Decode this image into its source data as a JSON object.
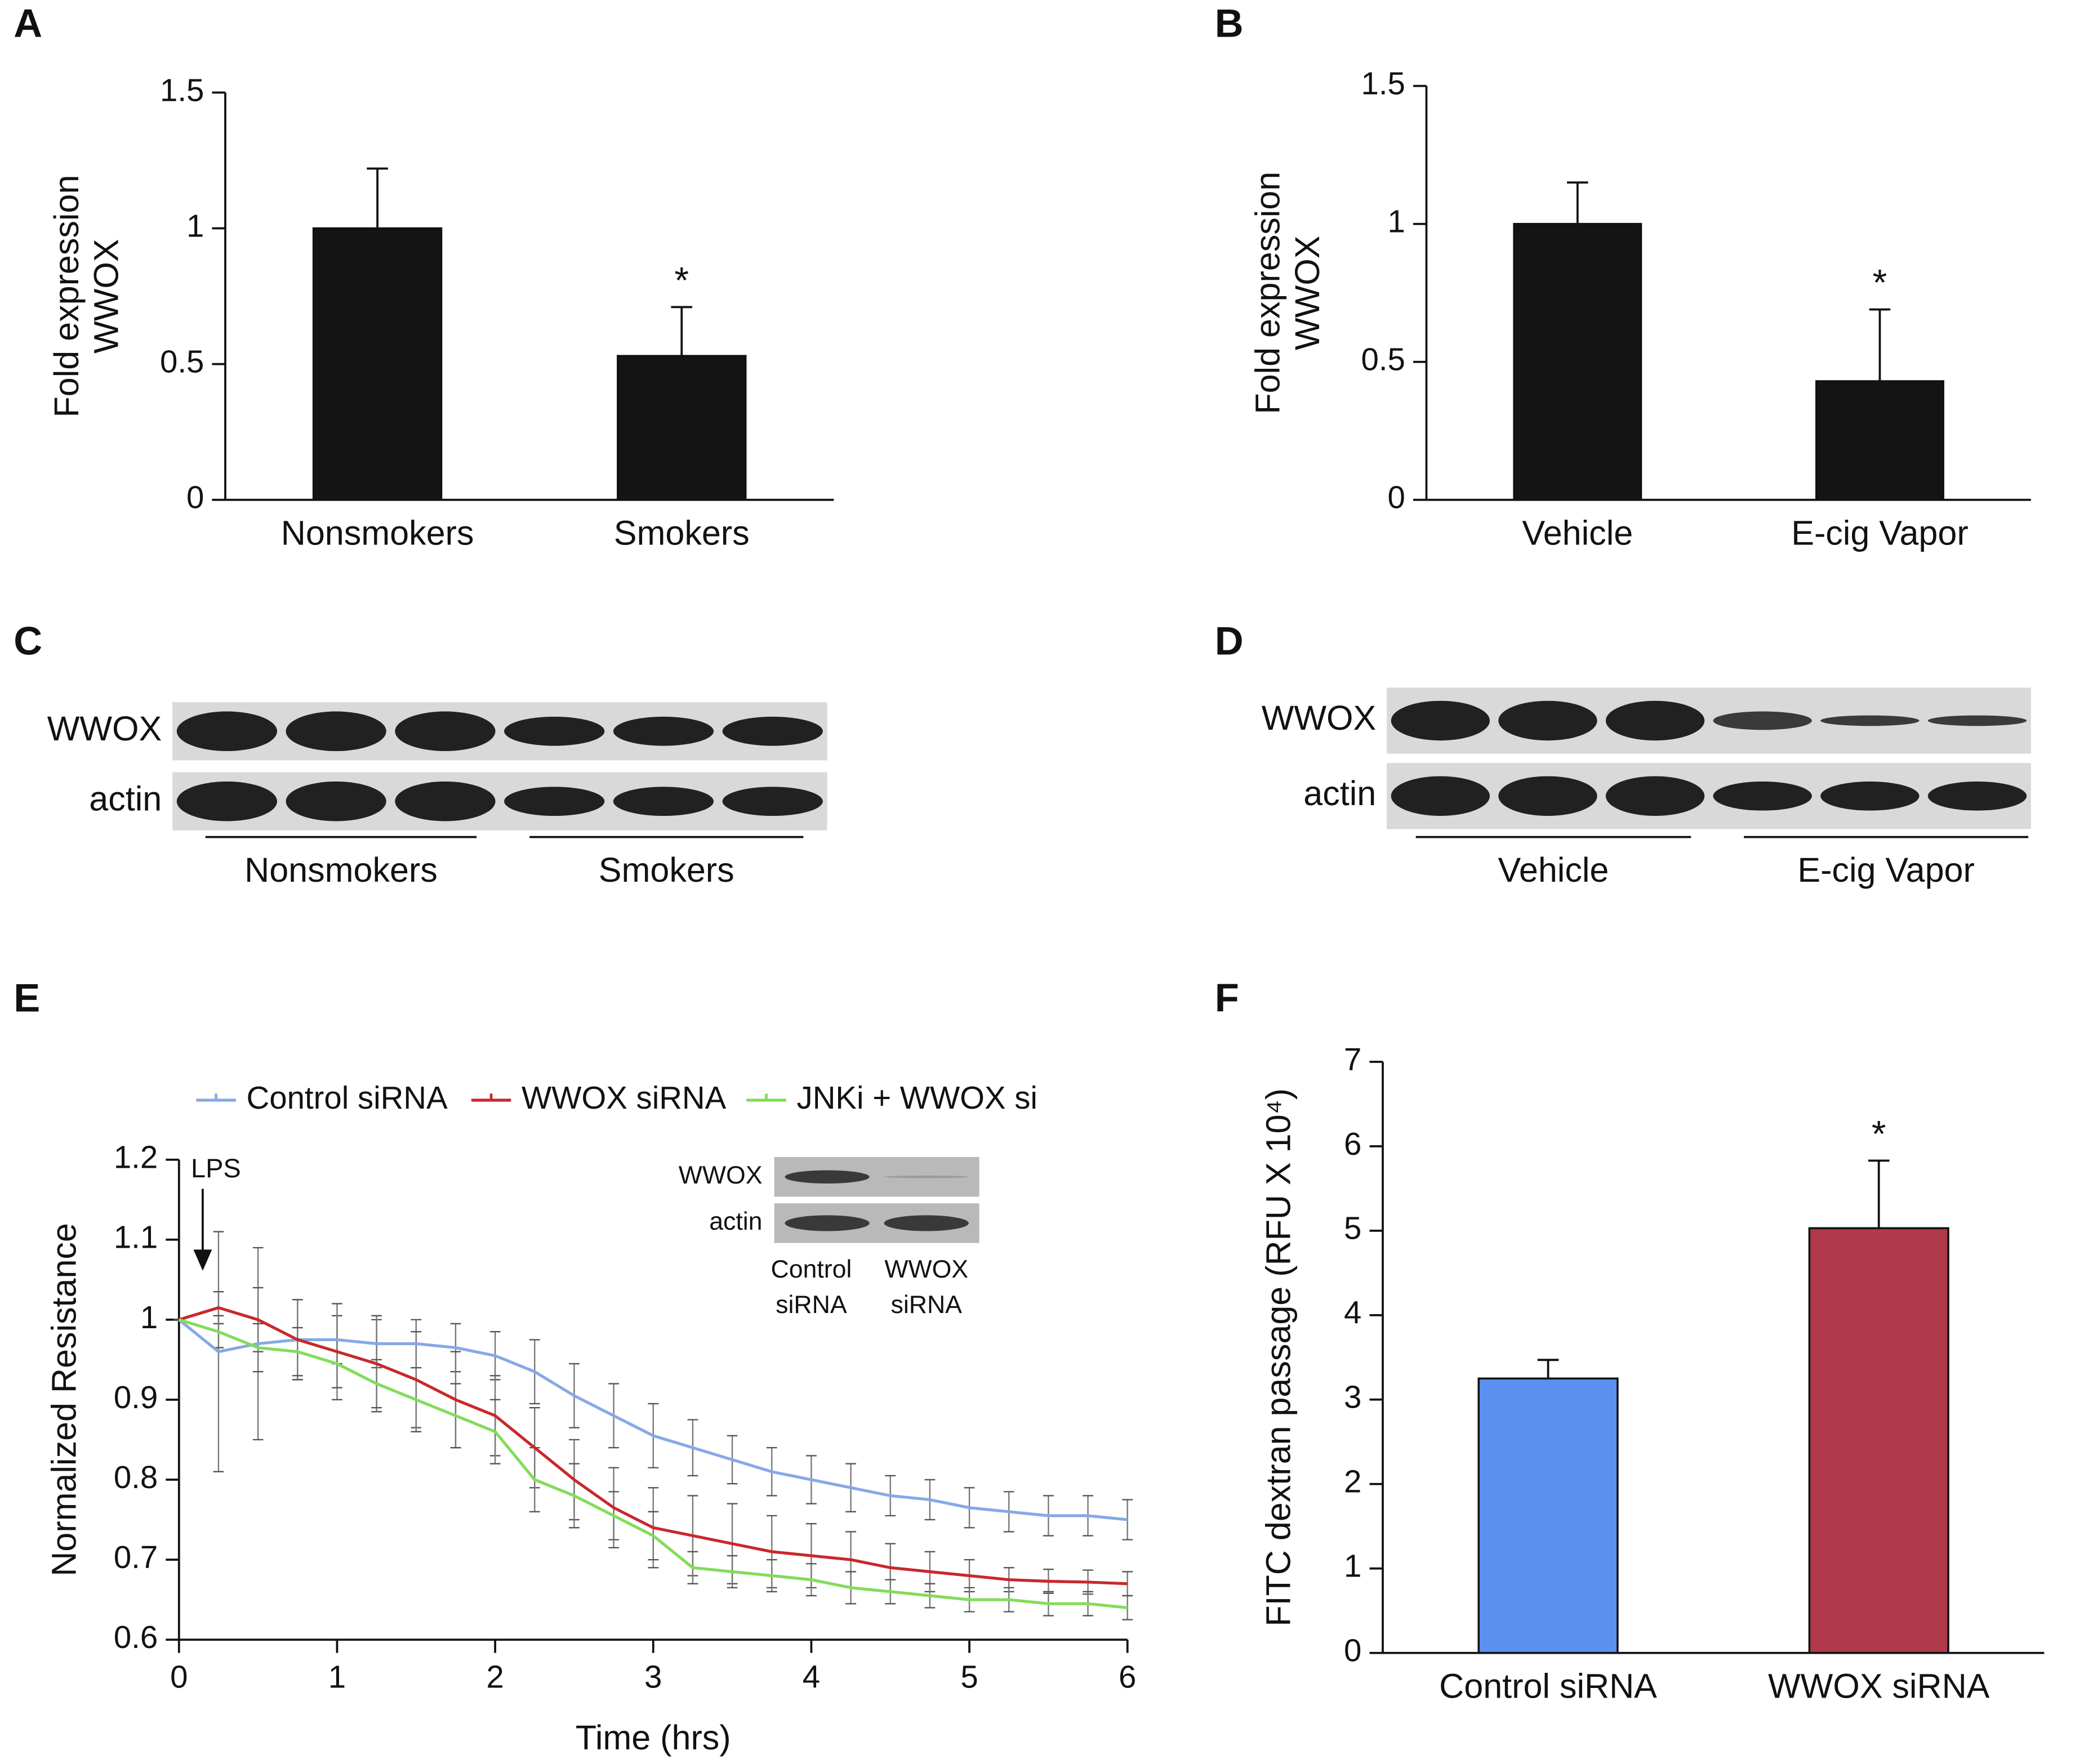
{
  "chart_data": [
    {
      "type": "bar",
      "panel": "A",
      "ylabel": [
        "Fold expression",
        "WWOX"
      ],
      "categories": [
        "Nonsmokers",
        "Smokers"
      ],
      "values": [
        1.0,
        0.53
      ],
      "errors": [
        0.22,
        0.18
      ],
      "color": "#141414",
      "ylim": [
        0,
        1.5
      ],
      "yticks": [
        0,
        0.5,
        1,
        1.5
      ],
      "annotation": "*"
    },
    {
      "type": "bar",
      "panel": "B",
      "ylabel": [
        "Fold expression",
        "WWOX"
      ],
      "categories": [
        "Vehicle",
        "E-cig Vapor"
      ],
      "values": [
        1.0,
        0.43
      ],
      "errors": [
        0.15,
        0.26
      ],
      "color": "#141414",
      "ylim": [
        0,
        1.5
      ],
      "yticks": [
        0,
        0.5,
        1,
        1.5
      ],
      "annotation": "*"
    },
    {
      "type": "line",
      "panel": "E",
      "xlabel": "Time (hrs)",
      "ylabel": "Normalized Resistance",
      "x": [
        0,
        0.25,
        0.5,
        0.75,
        1,
        1.25,
        1.5,
        1.75,
        2,
        2.25,
        2.5,
        2.75,
        3,
        3.25,
        3.5,
        3.75,
        4,
        4.25,
        4.5,
        4.75,
        5,
        5.25,
        5.5,
        5.75,
        6
      ],
      "series": [
        {
          "name": "Control siRNA",
          "color": "#86a9e6",
          "values": [
            1.0,
            0.96,
            0.97,
            0.975,
            0.975,
            0.97,
            0.97,
            0.965,
            0.955,
            0.935,
            0.905,
            0.88,
            0.855,
            0.84,
            0.825,
            0.81,
            0.8,
            0.79,
            0.78,
            0.775,
            0.765,
            0.76,
            0.755,
            0.755,
            0.75
          ],
          "errors": [
            0,
            0.15,
            0.12,
            0.05,
            0.03,
            0.03,
            0.03,
            0.03,
            0.03,
            0.04,
            0.04,
            0.04,
            0.04,
            0.035,
            0.03,
            0.03,
            0.03,
            0.03,
            0.025,
            0.025,
            0.025,
            0.025,
            0.025,
            0.025,
            0.025
          ]
        },
        {
          "name": "WWOX siRNA",
          "color": "#c8282d",
          "values": [
            1.0,
            1.015,
            1.0,
            0.975,
            0.96,
            0.945,
            0.925,
            0.9,
            0.88,
            0.84,
            0.8,
            0.765,
            0.74,
            0.73,
            0.72,
            0.71,
            0.705,
            0.7,
            0.69,
            0.685,
            0.68,
            0.675,
            0.673,
            0.672,
            0.67
          ],
          "errors": [
            0,
            0.02,
            0.04,
            0.05,
            0.06,
            0.06,
            0.06,
            0.06,
            0.05,
            0.05,
            0.05,
            0.05,
            0.05,
            0.05,
            0.05,
            0.045,
            0.04,
            0.035,
            0.03,
            0.025,
            0.02,
            0.015,
            0.015,
            0.015,
            0.015
          ]
        },
        {
          "name": "JNKi + WWOX si",
          "color": "#82dc5a",
          "values": [
            1.0,
            0.985,
            0.965,
            0.96,
            0.945,
            0.92,
            0.9,
            0.88,
            0.86,
            0.8,
            0.78,
            0.755,
            0.73,
            0.69,
            0.685,
            0.68,
            0.675,
            0.665,
            0.66,
            0.655,
            0.65,
            0.65,
            0.645,
            0.645,
            0.64
          ],
          "errors": [
            0,
            0.02,
            0.03,
            0.03,
            0.03,
            0.03,
            0.04,
            0.04,
            0.04,
            0.04,
            0.04,
            0.03,
            0.03,
            0.02,
            0.02,
            0.02,
            0.02,
            0.02,
            0.015,
            0.015,
            0.015,
            0.015,
            0.015,
            0.015,
            0.015
          ]
        }
      ],
      "xlim": [
        0,
        6
      ],
      "xticks": [
        0,
        1,
        2,
        3,
        4,
        5,
        6
      ],
      "ylim": [
        0.6,
        1.2
      ],
      "yticks": [
        0.6,
        0.7,
        0.8,
        0.9,
        1,
        1.1,
        1.2
      ],
      "annotation": "LPS",
      "inset": {
        "rows": [
          "WWOX",
          "actin"
        ],
        "columns": [
          [
            "Control",
            "siRNA"
          ],
          [
            "WWOX",
            "siRNA"
          ]
        ]
      }
    },
    {
      "type": "bar",
      "panel": "F",
      "ylabel": "FITC dextran passage (RFU X 10⁴)",
      "categories": [
        "Control siRNA",
        "WWOX siRNA"
      ],
      "values": [
        3.25,
        5.03
      ],
      "errors": [
        0.22,
        0.8
      ],
      "colors": [
        "#5b8ff0",
        "#b0394a"
      ],
      "ylim": [
        0,
        7
      ],
      "yticks": [
        0,
        1,
        2,
        3,
        4,
        5,
        6,
        7
      ],
      "annotation": "*"
    }
  ],
  "blots": [
    {
      "panel": "C",
      "rows": [
        "WWOX",
        "actin"
      ],
      "groups": [
        "Nonsmokers",
        "Smokers"
      ]
    },
    {
      "panel": "D",
      "rows": [
        "WWOX",
        "actin"
      ],
      "groups": [
        "Vehicle",
        "E-cig Vapor"
      ]
    }
  ]
}
